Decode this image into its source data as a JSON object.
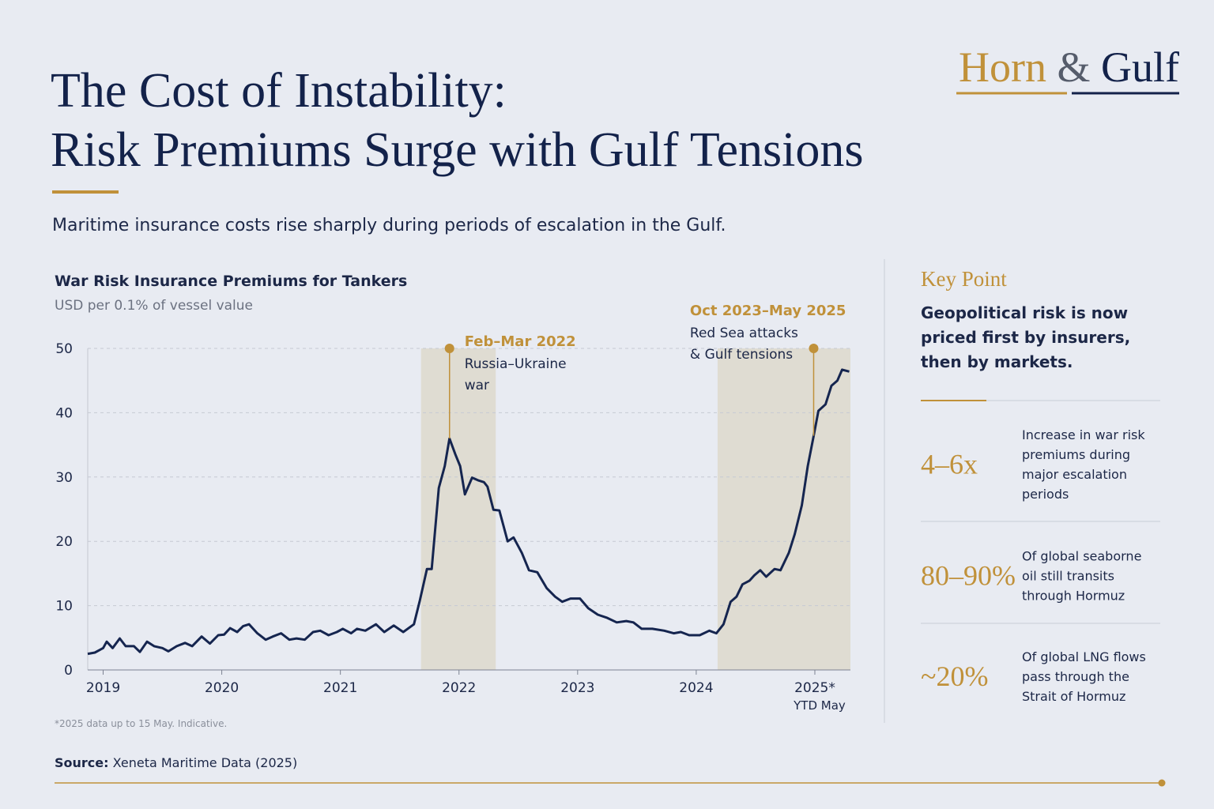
{
  "brand": {
    "first": "Horn",
    "amp": "&",
    "second": "Gulf"
  },
  "header": {
    "title": [
      "The Cost of Instability:",
      "Risk Premiums Surge with Gulf Tensions"
    ],
    "subtitle": "Maritime insurance costs rise sharply during periods of escalation in the Gulf."
  },
  "chart_data": {
    "type": "line",
    "title": "War Risk Insurance Premiums for Tankers",
    "subtitle": "USD per 0.1% of vessel value",
    "color": "#15254f",
    "grid": true,
    "x": [
      2018.87,
      2018.93,
      2019.0,
      2019.03,
      2019.08,
      2019.14,
      2019.19,
      2019.26,
      2019.31,
      2019.37,
      2019.43,
      2019.5,
      2019.55,
      2019.62,
      2019.69,
      2019.75,
      2019.83,
      2019.9,
      2019.97,
      2020.02,
      2020.07,
      2020.13,
      2020.18,
      2020.23,
      2020.3,
      2020.37,
      2020.43,
      2020.5,
      2020.57,
      2020.63,
      2020.7,
      2020.77,
      2020.83,
      2020.9,
      2020.97,
      2021.02,
      2021.09,
      2021.14,
      2021.21,
      2021.3,
      2021.37,
      2021.45,
      2021.53,
      2021.62,
      2021.67,
      2021.73,
      2021.77,
      2021.83,
      2021.88,
      2021.92,
      2021.97,
      2022.01,
      2022.05,
      2022.11,
      2022.16,
      2022.21,
      2022.24,
      2022.29,
      2022.34,
      2022.41,
      2022.46,
      2022.53,
      2022.59,
      2022.66,
      2022.74,
      2022.81,
      2022.87,
      2022.94,
      2023.02,
      2023.09,
      2023.17,
      2023.25,
      2023.33,
      2023.41,
      2023.47,
      2023.54,
      2023.63,
      2023.73,
      2023.81,
      2023.87,
      2023.94,
      2024.03,
      2024.11,
      2024.17,
      2024.23,
      2024.29,
      2024.34,
      2024.39,
      2024.45,
      2024.49,
      2024.54,
      2024.59,
      2024.66,
      2024.71,
      2024.78,
      2024.83,
      2024.89,
      2024.94,
      2024.99,
      2025.03,
      2025.09,
      2025.14,
      2025.19,
      2025.23,
      2025.29
    ],
    "values": [
      2.5,
      2.7,
      3.4,
      4.4,
      3.4,
      4.9,
      3.7,
      3.7,
      2.8,
      4.4,
      3.7,
      3.4,
      2.9,
      3.7,
      4.2,
      3.7,
      5.2,
      4.1,
      5.4,
      5.5,
      6.5,
      5.9,
      6.8,
      7.1,
      5.7,
      4.7,
      5.2,
      5.7,
      4.7,
      4.9,
      4.7,
      5.9,
      6.1,
      5.4,
      5.9,
      6.4,
      5.7,
      6.4,
      6.1,
      7.1,
      5.9,
      6.9,
      5.9,
      7.1,
      10.8,
      15.7,
      15.7,
      28.3,
      31.7,
      36.0,
      33.5,
      31.7,
      27.3,
      29.9,
      29.5,
      29.2,
      28.5,
      24.9,
      24.8,
      20.0,
      20.6,
      18.2,
      15.5,
      15.2,
      12.7,
      11.4,
      10.6,
      11.1,
      11.1,
      9.6,
      8.6,
      8.1,
      7.4,
      7.6,
      7.4,
      6.4,
      6.4,
      6.1,
      5.7,
      5.9,
      5.4,
      5.4,
      6.1,
      5.7,
      7.1,
      10.6,
      11.4,
      13.3,
      13.9,
      14.7,
      15.5,
      14.5,
      15.7,
      15.5,
      18.2,
      21.1,
      25.6,
      31.7,
      36.4,
      40.3,
      41.3,
      44.2,
      45.0,
      46.7,
      46.4
    ],
    "xlim": [
      2018.87,
      2025.3
    ],
    "xticks": [
      2019,
      2020,
      2021,
      2022,
      2023,
      2024,
      {
        "value": 2025,
        "label": "2025*"
      }
    ],
    "xtick_note": "YTD May",
    "ylim": [
      0,
      50
    ],
    "yticks": [
      0,
      10,
      20,
      30,
      40,
      50
    ],
    "highlights": [
      {
        "start": 2021.68,
        "end": 2022.31,
        "marker_x": 2021.92,
        "label": "Feb–Mar 2022",
        "text": [
          "Russia–Ukraine",
          "war"
        ]
      },
      {
        "start": 2024.18,
        "end": 2025.3,
        "marker_x": 2024.99,
        "label": "Oct 2023–May 2025",
        "text": [
          "Red Sea attacks",
          "& Gulf tensions"
        ]
      }
    ],
    "note": "*2025 data up to 15 May. Indicative."
  },
  "source": {
    "label": "Source:",
    "text": "Xeneta Maritime Data (2025)"
  },
  "key_point": {
    "heading": "Key Point",
    "statement": [
      "Geopolitical risk is now",
      "priced first by insurers,",
      "then by markets."
    ],
    "stats": [
      {
        "value": "4–6x",
        "text": [
          "Increase in war risk",
          "premiums during",
          "major escalation",
          "periods"
        ]
      },
      {
        "value": "80–90%",
        "text": [
          "Of global seaborne",
          "oil still transits",
          "through Hormuz"
        ]
      },
      {
        "value": "~20%",
        "text": [
          "Of global LNG flows",
          "pass through the",
          "Strait of Hormuz"
        ]
      }
    ]
  }
}
